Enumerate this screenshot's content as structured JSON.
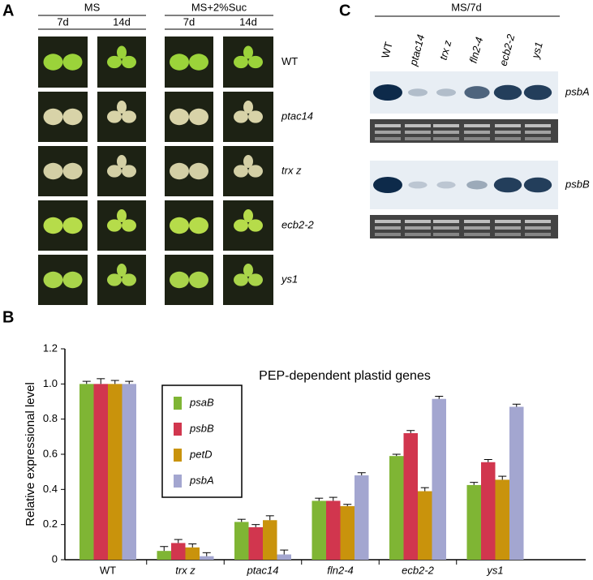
{
  "panel_labels": [
    "A",
    "B",
    "C"
  ],
  "panel_a": {
    "groups": [
      {
        "label": "MS",
        "days": [
          "7d",
          "14d"
        ]
      },
      {
        "label": "MS+2%Suc",
        "days": [
          "7d",
          "14d"
        ]
      }
    ],
    "rows": [
      "WT",
      "ptac14",
      "trx z",
      "ecb2-2",
      "ys1"
    ]
  },
  "panel_c": {
    "condition": "MS/7d",
    "lanes": [
      "WT",
      "ptac14",
      "trx z",
      "fln2-4",
      "ecb2-2",
      "ys1"
    ],
    "blots": [
      "psbA",
      "psbB"
    ]
  },
  "chart_data": {
    "type": "bar",
    "title": "PEP-dependent plastid genes",
    "y_label": "Relative expressional level",
    "categories": [
      "WT",
      "trx z",
      "ptac14",
      "fln2-4",
      "ecb2-2",
      "ys1"
    ],
    "series": [
      {
        "name": "psaB",
        "color": "#7fb534",
        "values": [
          1.0,
          0.05,
          0.215,
          0.335,
          0.59,
          0.425
        ],
        "errors": [
          0.015,
          0.025,
          0.015,
          0.015,
          0.01,
          0.015
        ]
      },
      {
        "name": "psbB",
        "color": "#d1364e",
        "values": [
          1.0,
          0.095,
          0.185,
          0.335,
          0.72,
          0.555
        ],
        "errors": [
          0.03,
          0.02,
          0.015,
          0.02,
          0.015,
          0.015
        ]
      },
      {
        "name": "petD",
        "color": "#c9930c",
        "values": [
          1.0,
          0.07,
          0.225,
          0.305,
          0.39,
          0.455
        ],
        "errors": [
          0.02,
          0.02,
          0.025,
          0.01,
          0.02,
          0.02
        ]
      },
      {
        "name": "psbA",
        "color": "#a3a6d0",
        "values": [
          1.0,
          0.02,
          0.03,
          0.48,
          0.915,
          0.87
        ],
        "errors": [
          0.015,
          0.02,
          0.025,
          0.015,
          0.015,
          0.015
        ]
      }
    ],
    "ylim": [
      0,
      1.2
    ],
    "yticks": [
      0,
      0.2,
      0.4,
      0.6,
      0.8,
      {
        "value": 1,
        "label": "1.0"
      },
      1.2
    ],
    "grid": false,
    "legend": "upper left"
  }
}
